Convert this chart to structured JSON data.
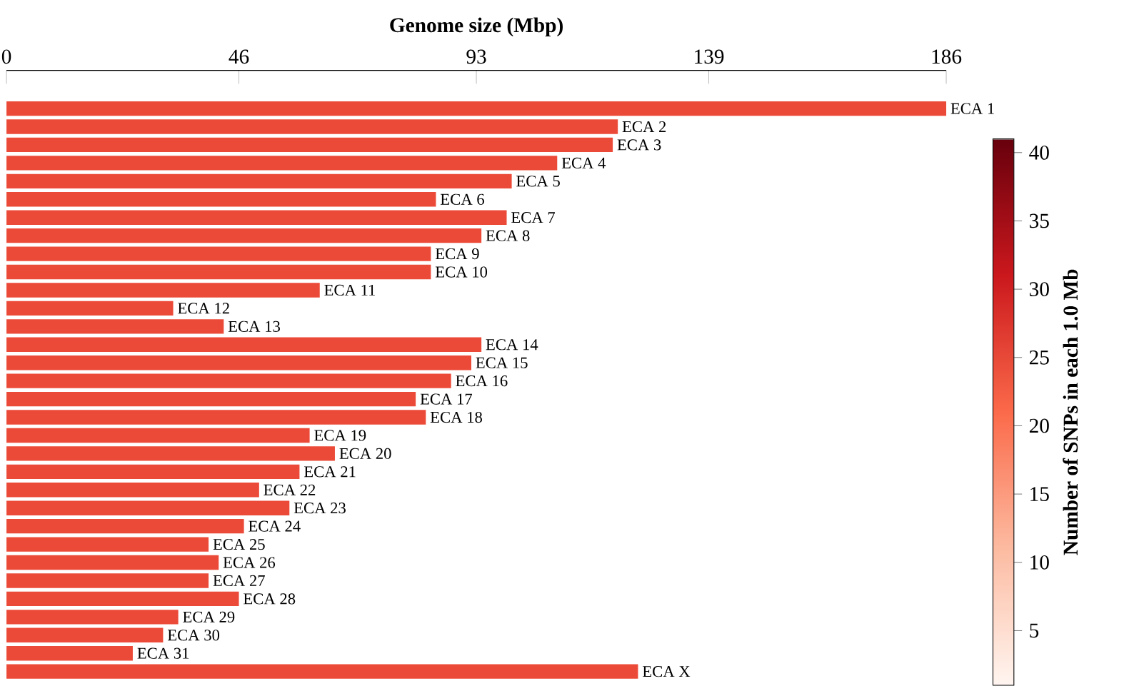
{
  "chart_data": {
    "type": "bar",
    "orientation": "horizontal",
    "xlabel": "Genome size (Mbp)",
    "categories": [
      "ECA 1",
      "ECA 2",
      "ECA 3",
      "ECA 4",
      "ECA 5",
      "ECA 6",
      "ECA 7",
      "ECA 8",
      "ECA 9",
      "ECA 10",
      "ECA 11",
      "ECA 12",
      "ECA 13",
      "ECA 14",
      "ECA 15",
      "ECA 16",
      "ECA 17",
      "ECA 18",
      "ECA 19",
      "ECA 20",
      "ECA 21",
      "ECA 22",
      "ECA 23",
      "ECA 24",
      "ECA 25",
      "ECA 26",
      "ECA 27",
      "ECA 28",
      "ECA 29",
      "ECA 30",
      "ECA 31",
      "ECA X"
    ],
    "values": [
      186,
      121,
      120,
      109,
      100,
      85,
      99,
      94,
      84,
      84,
      62,
      33,
      43,
      94,
      92,
      88,
      81,
      83,
      60,
      65,
      58,
      50,
      56,
      47,
      40,
      42,
      40,
      46,
      34,
      31,
      25,
      125
    ],
    "color": "#ec4a38",
    "xlim": [
      0,
      186
    ],
    "xticks": [
      0,
      46,
      93,
      139,
      186
    ],
    "clabel": "Number of SNPs in each 1.0 Mb",
    "clim": [
      1,
      41
    ],
    "cticks": [
      5,
      10,
      15,
      20,
      25,
      30,
      35,
      40
    ]
  }
}
